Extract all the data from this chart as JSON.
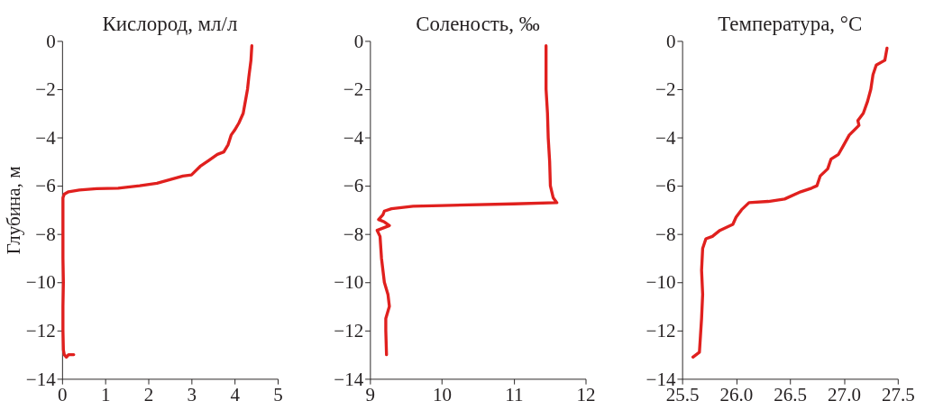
{
  "chart_data": [
    {
      "type": "line",
      "title": "Кислород, мл/л",
      "ylabel": "Глубина, м",
      "xlim": [
        0,
        5
      ],
      "xticks": [
        0,
        1,
        2,
        3,
        4,
        5
      ],
      "ylim": [
        -14,
        0
      ],
      "yticks": [
        -14,
        -12,
        -10,
        -8,
        -6,
        -4,
        -2,
        0
      ],
      "grid": false,
      "marker": "none",
      "line_style": "solid",
      "series": [
        {
          "color": "#e0201e",
          "x": [
            4.4,
            4.38,
            4.33,
            4.3,
            4.25,
            4.2,
            4.1,
            4.0,
            3.92,
            3.85,
            3.75,
            3.6,
            3.4,
            3.2,
            3.0,
            2.8,
            2.5,
            2.2,
            1.8,
            1.3,
            0.8,
            0.4,
            0.15,
            0.05,
            0.02,
            0.02,
            0.02,
            0.03,
            0.02,
            0.02,
            0.03,
            0.05,
            0.1,
            0.15,
            0.27
          ],
          "values": [
            -0.2,
            -0.8,
            -1.5,
            -2.0,
            -2.5,
            -3.0,
            -3.4,
            -3.7,
            -3.9,
            -4.3,
            -4.6,
            -4.7,
            -4.95,
            -5.2,
            -5.55,
            -5.6,
            -5.75,
            -5.9,
            -6.0,
            -6.1,
            -6.12,
            -6.18,
            -6.25,
            -6.35,
            -6.5,
            -8,
            -9,
            -10,
            -11,
            -12,
            -12.8,
            -13.0,
            -13.1,
            -13.0,
            -13.0
          ]
        }
      ]
    },
    {
      "type": "line",
      "title": "Соленость, ‰",
      "xlim": [
        9,
        12
      ],
      "xticks": [
        9,
        10,
        11,
        12
      ],
      "ylim": [
        -14,
        0
      ],
      "yticks": [
        -14,
        -12,
        -10,
        -8,
        -6,
        -4,
        -2,
        0
      ],
      "grid": false,
      "marker": "none",
      "line_style": "solid",
      "series": [
        {
          "color": "#e0201e",
          "x": [
            11.45,
            11.45,
            11.45,
            11.47,
            11.48,
            11.5,
            11.51,
            11.55,
            11.6,
            11.0,
            10.0,
            9.6,
            9.3,
            9.2,
            9.18,
            9.12,
            9.2,
            9.27,
            9.1,
            9.14,
            9.16,
            9.2,
            9.25,
            9.27,
            9.22,
            9.22,
            9.23
          ],
          "values": [
            -0.2,
            -1,
            -2,
            -3,
            -4,
            -5,
            -6,
            -6.5,
            -6.7,
            -6.75,
            -6.82,
            -6.85,
            -6.95,
            -7.05,
            -7.2,
            -7.4,
            -7.5,
            -7.65,
            -7.85,
            -8.1,
            -9,
            -10,
            -10.5,
            -11,
            -11.5,
            -12,
            -13.0
          ]
        }
      ]
    },
    {
      "type": "line",
      "title": "Температура, °C",
      "xlim": [
        25.5,
        27.5
      ],
      "xticks": [
        {
          "value": 25.5,
          "label": "25.5"
        },
        {
          "value": 26,
          "label": "26.0"
        },
        {
          "value": 26.5,
          "label": "26.5"
        },
        {
          "value": 27,
          "label": "27.0"
        },
        {
          "value": 27.5,
          "label": "27.5"
        }
      ],
      "ylim": [
        -14,
        0
      ],
      "yticks": [
        -14,
        -12,
        -10,
        -8,
        -6,
        -4,
        -2,
        0
      ],
      "grid": false,
      "marker": "none",
      "line_style": "solid",
      "series": [
        {
          "color": "#e0201e",
          "x": [
            27.4,
            27.38,
            27.3,
            27.27,
            27.25,
            27.22,
            27.18,
            27.13,
            27.14,
            27.05,
            27.0,
            26.95,
            26.88,
            26.85,
            26.78,
            26.75,
            26.7,
            26.6,
            26.45,
            26.3,
            26.12,
            26.05,
            26.0,
            25.97,
            25.85,
            25.78,
            25.72,
            25.69,
            25.68,
            25.69,
            25.68,
            25.67,
            25.66,
            25.63,
            25.6
          ],
          "values": [
            -0.3,
            -0.8,
            -1.0,
            -1.4,
            -2.0,
            -2.5,
            -3.0,
            -3.3,
            -3.5,
            -3.9,
            -4.3,
            -4.7,
            -4.9,
            -5.3,
            -5.6,
            -6.0,
            -6.1,
            -6.25,
            -6.55,
            -6.65,
            -6.7,
            -7.0,
            -7.3,
            -7.6,
            -7.85,
            -8.1,
            -8.2,
            -8.6,
            -9.5,
            -10.5,
            -11.5,
            -12.2,
            -12.9,
            -13.0,
            -13.1
          ]
        }
      ]
    }
  ]
}
